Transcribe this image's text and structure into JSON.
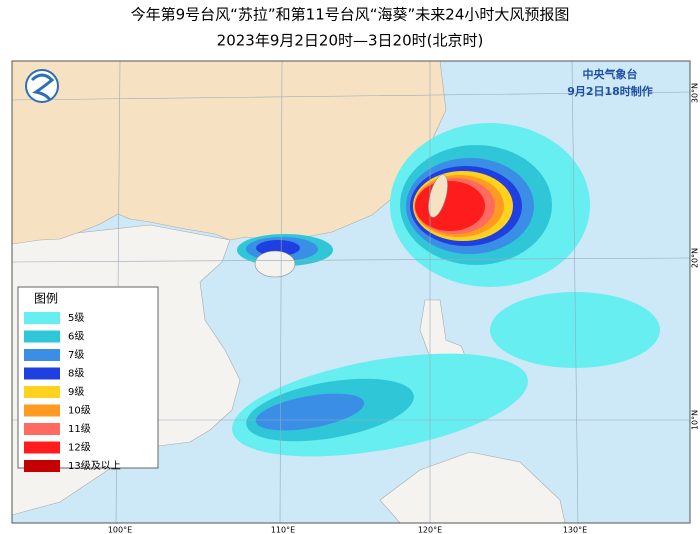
{
  "header": {
    "title": "今年第9号台风“苏拉”和第11号台风“海葵”未来24小时大风预报图",
    "subtitle": "2023年9月2日20时—3日20时(北京时)"
  },
  "map": {
    "agency": "中央气象台",
    "issued": "9月2日18时制作",
    "longitude_labels": [
      "100°E",
      "110°E",
      "120°E",
      "130°E"
    ],
    "latitude_labels": [
      "30°N",
      "20°N",
      "10°N"
    ]
  },
  "legend": {
    "title": "图例",
    "items": [
      {
        "label": "5级",
        "color": "#66eef0"
      },
      {
        "label": "6级",
        "color": "#2fc7d8"
      },
      {
        "label": "7级",
        "color": "#3a8ee6"
      },
      {
        "label": "8级",
        "color": "#1f3fe0"
      },
      {
        "label": "9级",
        "color": "#ffd21e"
      },
      {
        "label": "10级",
        "color": "#ff9a22"
      },
      {
        "label": "11级",
        "color": "#ff6b60"
      },
      {
        "label": "12级",
        "color": "#ff1c1c"
      },
      {
        "label": "13级及以上",
        "color": "#c40000"
      }
    ]
  }
}
